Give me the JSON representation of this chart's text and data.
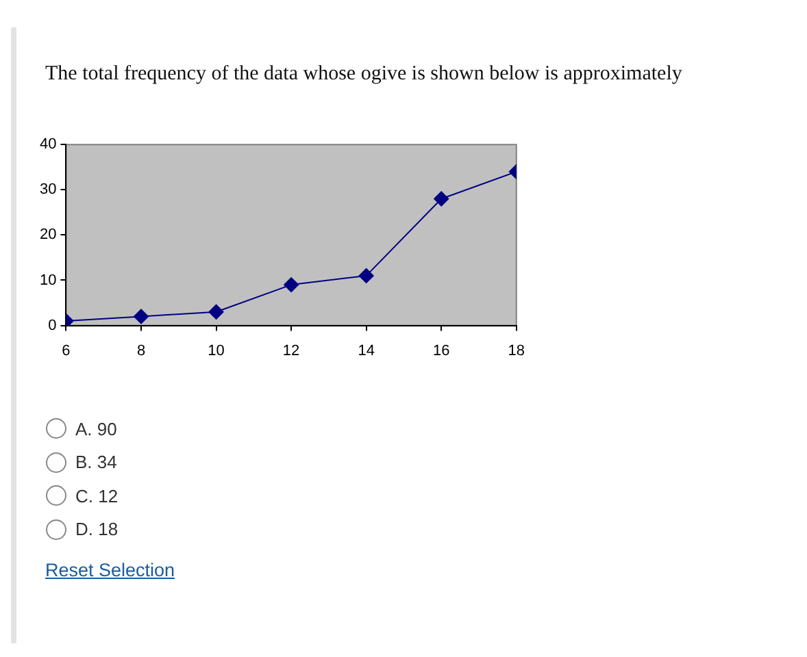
{
  "chart_data": {
    "type": "line",
    "title": "The total frequency of the data whose ogive is shown below is approximately",
    "x": [
      6,
      8,
      10,
      12,
      14,
      16,
      18
    ],
    "series": [
      {
        "color": "#000080",
        "values": [
          1,
          2,
          3,
          9,
          11,
          28,
          34
        ]
      }
    ],
    "xlim": [
      6,
      18
    ],
    "xticks": [
      6,
      8,
      10,
      12,
      14,
      16,
      18
    ],
    "ylim": [
      0,
      40
    ],
    "yticks": [
      0,
      10,
      20,
      30,
      40
    ],
    "grid": false,
    "legend": false,
    "marker": "diamond",
    "line_style": "solid",
    "annotations": [
      "A. 90",
      "B. 34",
      "C. 12",
      "D. 18",
      "Reset Selection"
    ]
  }
}
